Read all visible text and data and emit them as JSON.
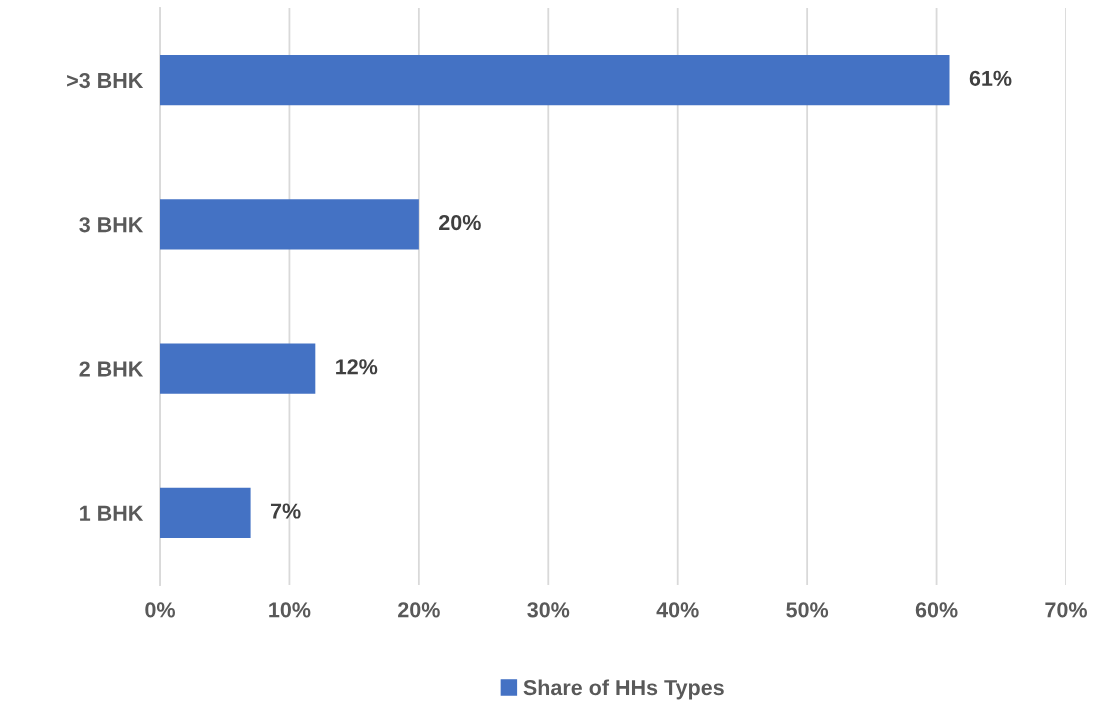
{
  "chart_data": {
    "type": "bar",
    "orientation": "horizontal",
    "categories": [
      ">3 BHK",
      "3 BHK",
      "2 BHK",
      "1 BHK"
    ],
    "series": [
      {
        "name": "Share of HHs Types",
        "color": "#4472c4",
        "values": [
          61,
          20,
          12,
          7
        ],
        "value_labels": [
          "61%",
          "20%",
          "12%",
          "7%"
        ]
      }
    ],
    "xlim": [
      0,
      70
    ],
    "xticks": [
      {
        "value": 0,
        "label": "0%"
      },
      {
        "value": 10,
        "label": "10%"
      },
      {
        "value": 20,
        "label": "20%"
      },
      {
        "value": 30,
        "label": "30%"
      },
      {
        "value": 40,
        "label": "40%"
      },
      {
        "value": 50,
        "label": "50%"
      },
      {
        "value": 60,
        "label": "60%"
      },
      {
        "value": 70,
        "label": "70%"
      }
    ],
    "grid": "x",
    "legend": "bottom"
  }
}
